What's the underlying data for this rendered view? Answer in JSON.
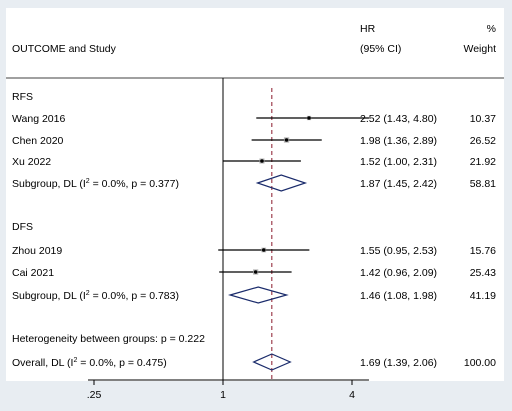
{
  "chart_data": {
    "type": "forest",
    "header": {
      "col_label": "OUTCOME and Study",
      "hr_line1": "HR",
      "hr_line2": "(95% CI)",
      "w_line1": "%",
      "w_line2": "Weight"
    },
    "x_scale": "log",
    "xlim": [
      0.25,
      4.8
    ],
    "xticks": [
      {
        "value": 0.25,
        "label": ".25"
      },
      {
        "value": 1,
        "label": "1"
      },
      {
        "value": 4,
        "label": "4"
      }
    ],
    "null_line": 1,
    "overall_line": 1.69,
    "colors": {
      "background": "#e8edf2",
      "plot_area": "#ffffff",
      "diamond": "#1a2b6b",
      "ref_line": "#8b1a2b",
      "ci_line": "#000000",
      "marker_box": "#a9a9a9"
    },
    "groups": [
      {
        "name": "RFS",
        "studies": [
          {
            "label": "Wang 2016",
            "hr": 2.52,
            "lo": 1.43,
            "hi": 4.8,
            "ci_text": "2.52 (1.43, 4.80)",
            "weight": "10.37"
          },
          {
            "label": "Chen 2020",
            "hr": 1.98,
            "lo": 1.36,
            "hi": 2.89,
            "ci_text": "1.98 (1.36, 2.89)",
            "weight": "26.52"
          },
          {
            "label": "Xu 2022",
            "hr": 1.52,
            "lo": 1.0,
            "hi": 2.31,
            "ci_text": "1.52 (1.00, 2.31)",
            "weight": "21.92"
          }
        ],
        "subgroup": {
          "label_prefix": "Subgroup, DL (I",
          "sup": "2",
          "label_suffix": " = 0.0%, p = 0.377)",
          "hr": 1.87,
          "lo": 1.45,
          "hi": 2.42,
          "ci_text": "1.87 (1.45, 2.42)",
          "weight": "58.81"
        }
      },
      {
        "name": "DFS",
        "studies": [
          {
            "label": "Zhou 2019",
            "hr": 1.55,
            "lo": 0.95,
            "hi": 2.53,
            "ci_text": "1.55 (0.95, 2.53)",
            "weight": "15.76"
          },
          {
            "label": "Cai 2021",
            "hr": 1.42,
            "lo": 0.96,
            "hi": 2.09,
            "ci_text": "1.42 (0.96, 2.09)",
            "weight": "25.43"
          }
        ],
        "subgroup": {
          "label_prefix": "Subgroup, DL (I",
          "sup": "2",
          "label_suffix": " = 0.0%, p = 0.783)",
          "hr": 1.46,
          "lo": 1.08,
          "hi": 1.98,
          "ci_text": "1.46 (1.08, 1.98)",
          "weight": "41.19"
        }
      }
    ],
    "heterogeneity": "Heterogeneity between groups: p = 0.222",
    "overall": {
      "label_prefix": "Overall, DL (I",
      "sup": "2",
      "label_suffix": " = 0.0%, p = 0.475)",
      "hr": 1.69,
      "lo": 1.39,
      "hi": 2.06,
      "ci_text": "1.69 (1.39, 2.06)",
      "weight": "100.00"
    }
  }
}
